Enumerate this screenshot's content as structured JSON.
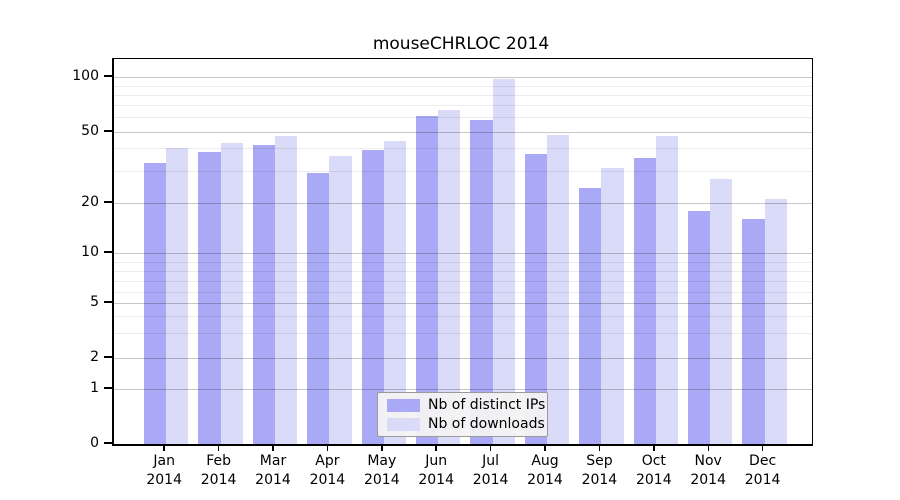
{
  "title": "mouseCHRLOC 2014",
  "colors": {
    "distinct_ips": "#a9a9f5",
    "downloads": "#dadaf9",
    "axis": "#000000",
    "grid_major": "#c6c6c6",
    "grid_minor": "#ebebeb"
  },
  "legend": {
    "items": [
      {
        "label": "Nb of distinct IPs",
        "series": "distinct_ips"
      },
      {
        "label": "Nb of downloads",
        "series": "downloads"
      }
    ]
  },
  "y_axis": {
    "tick_labels": [
      "100",
      "50",
      "20",
      "10",
      "5",
      "2",
      "1",
      "0"
    ]
  },
  "x_axis": {
    "labels": [
      [
        "Jan",
        "2014"
      ],
      [
        "Feb",
        "2014"
      ],
      [
        "Mar",
        "2014"
      ],
      [
        "Apr",
        "2014"
      ],
      [
        "May",
        "2014"
      ],
      [
        "Jun",
        "2014"
      ],
      [
        "Jul",
        "2014"
      ],
      [
        "Aug",
        "2014"
      ],
      [
        "Sep",
        "2014"
      ],
      [
        "Oct",
        "2014"
      ],
      [
        "Nov",
        "2014"
      ],
      [
        "Dec",
        "2014"
      ]
    ]
  },
  "chart_data": {
    "type": "bar",
    "title": "mouseCHRLOC 2014",
    "categories": [
      "Jan 2014",
      "Feb 2014",
      "Mar 2014",
      "Apr 2014",
      "May 2014",
      "Jun 2014",
      "Jul 2014",
      "Aug 2014",
      "Sep 2014",
      "Oct 2014",
      "Nov 2014",
      "Dec 2014"
    ],
    "series": [
      {
        "name": "Nb of distinct IPs",
        "values": [
          33,
          38,
          42,
          29,
          39,
          61,
          58,
          37,
          24,
          35,
          18,
          16
        ]
      },
      {
        "name": "Nb of downloads",
        "values": [
          40,
          43,
          47,
          36,
          44,
          66,
          98,
          48,
          31,
          47,
          27,
          21
        ]
      }
    ],
    "y_ticks": [
      100,
      50,
      20,
      10,
      5,
      2,
      1,
      0
    ],
    "y_scale": "log-like (compressed toward 0 baseline)",
    "ylim": [
      0,
      110
    ],
    "grid": true,
    "legend_position": "inside bottom-center"
  }
}
